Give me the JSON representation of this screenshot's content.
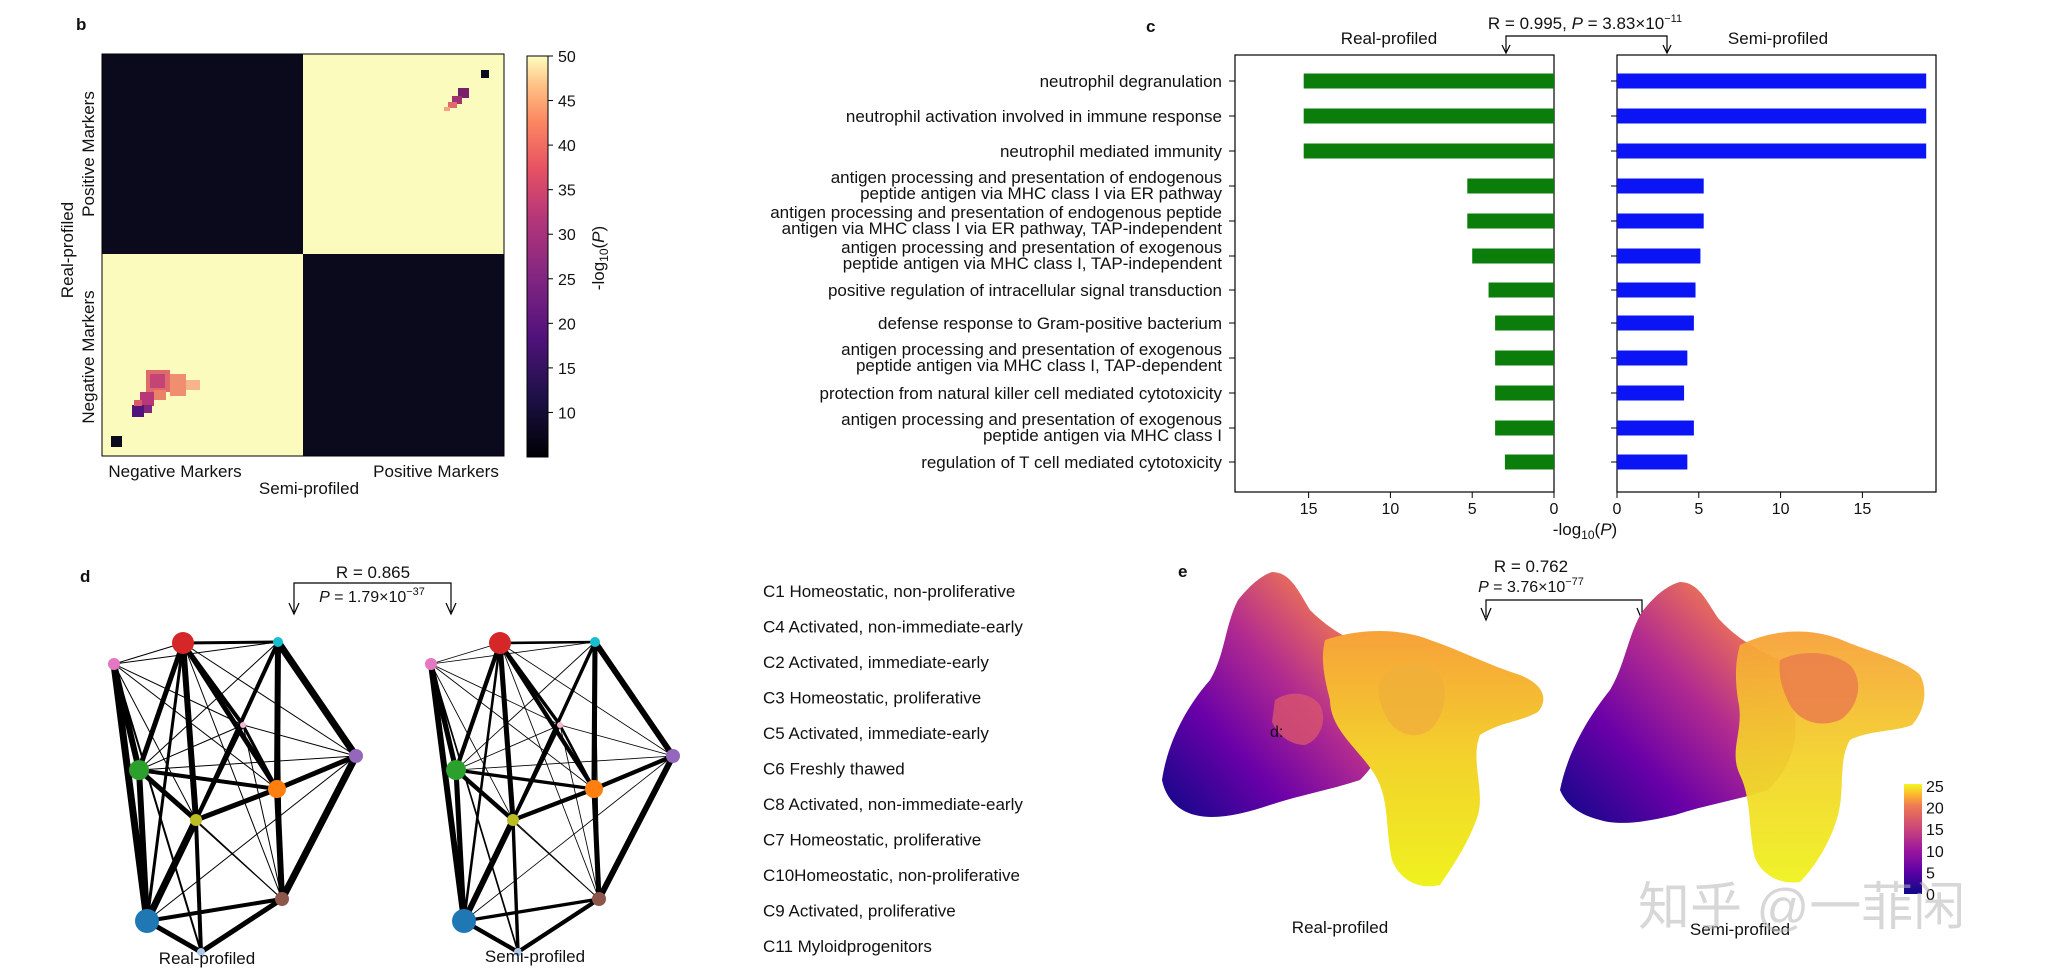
{
  "panel_b": {
    "label": "b",
    "y_title": "Real-profiled",
    "x_title": "Semi-profiled",
    "y_groups": [
      "Positive Markers",
      "Negative Markers"
    ],
    "x_groups": [
      "Negative Markers",
      "Positive Markers"
    ],
    "colorbar_label": "-log10(P)",
    "colorbar_ticks": [
      10,
      15,
      20,
      25,
      30,
      35,
      40,
      45,
      50
    ],
    "colorbar_range": [
      5,
      50
    ],
    "colors": {
      "dark": "#0b0a1d",
      "light": "#fbfbbe"
    }
  },
  "panel_c": {
    "label": "c",
    "stat": "R = 0.995, P = 3.83×10−11",
    "stat_parts": {
      "r": "R = 0.995, ",
      "p_sym": "P",
      "p_val": " = 3.83×10",
      "p_exp": "−11"
    },
    "left_title": "Real-profiled",
    "right_title": "Semi-profiled",
    "x_label": "-log10(P)",
    "left_color": "#0a7d0a",
    "right_color": "#0a14f5",
    "xticks": [
      15,
      10,
      5,
      0
    ],
    "xticks_right": [
      0,
      5,
      10,
      15
    ]
  },
  "chart_data": {
    "type": "bar",
    "title": "",
    "xlabel": "-log10(P)",
    "xlim": [
      0,
      19.5
    ],
    "categories": [
      [
        "neutrophil degranulation"
      ],
      [
        "neutrophil activation involved in immune response"
      ],
      [
        "neutrophil mediated immunity"
      ],
      [
        "antigen processing and presentation of endogenous",
        "peptide antigen via MHC class I via ER pathway"
      ],
      [
        "antigen processing and presentation of endogenous peptide",
        "antigen via MHC class I via ER pathway, TAP-independent"
      ],
      [
        "antigen processing and presentation of exogenous",
        "peptide antigen via MHC class I, TAP-independent"
      ],
      [
        "positive regulation of intracellular signal transduction"
      ],
      [
        "defense response to Gram-positive bacterium"
      ],
      [
        "antigen processing and presentation of exogenous",
        "peptide antigen via MHC class I, TAP-dependent"
      ],
      [
        "protection from natural killer cell mediated cytotoxicity"
      ],
      [
        "antigen processing and presentation of exogenous",
        "peptide antigen via MHC class I"
      ],
      [
        "regulation of T cell mediated cytotoxicity"
      ]
    ],
    "series": [
      {
        "name": "Real-profiled",
        "values": [
          15.3,
          15.3,
          15.3,
          5.3,
          5.3,
          5.0,
          4.0,
          3.6,
          3.6,
          3.6,
          3.6,
          3.0
        ]
      },
      {
        "name": "Semi-profiled",
        "values": [
          18.9,
          18.9,
          18.9,
          5.3,
          5.3,
          5.1,
          4.8,
          4.7,
          4.3,
          4.1,
          4.7,
          4.3
        ]
      }
    ]
  },
  "panel_d": {
    "label": "d",
    "stat_r": "R = 0.865",
    "stat_p": {
      "p_sym": "P",
      "p_val": " = 1.79×10",
      "p_exp": "−37"
    },
    "left_title": "Real-profiled",
    "right_title": "Semi-profiled",
    "nodes": [
      {
        "id": "C1",
        "color": "#e377c2"
      },
      {
        "id": "C2",
        "color": "#d62728"
      },
      {
        "id": "C3",
        "color": "#17becf"
      },
      {
        "id": "C4",
        "color": "#2ca02c"
      },
      {
        "id": "C5",
        "color": "#ff7f0e"
      },
      {
        "id": "C6",
        "color": "#9467bd"
      },
      {
        "id": "C7",
        "color": "#bcbd22"
      },
      {
        "id": "C8",
        "color": "#8c564b"
      },
      {
        "id": "C9",
        "color": "#1f77b4"
      },
      {
        "id": "C10",
        "color": "#aec7e8"
      },
      {
        "id": "C11",
        "color": "#f7b6d2"
      }
    ],
    "clusters": [
      "C1 Homeostatic, non-proliferative",
      "C4 Activated, non-immediate-early",
      "C2 Activated, immediate-early",
      "C3 Homeostatic, proliferative",
      "C5 Activated, immediate-early",
      "C6 Freshly thawed",
      "C8 Activated, non-immediate-early",
      "C7 Homeostatic, proliferative",
      "C10Homeostatic, non-proliferative",
      "C9 Activated, proliferative",
      "C11 Myloidprogenitors"
    ]
  },
  "panel_e": {
    "label": "e",
    "stat_r": "R = 0.762",
    "stat_p": {
      "p_sym": "P",
      "p_val": " = 3.76×10",
      "p_exp": "−77"
    },
    "left_title": "Real-profiled",
    "right_title": "Semi-profiled",
    "colorbar_ticks": [
      25,
      20,
      15,
      10,
      5,
      0
    ],
    "stray_label": "d:"
  },
  "watermark": "知乎 @一菲闲"
}
